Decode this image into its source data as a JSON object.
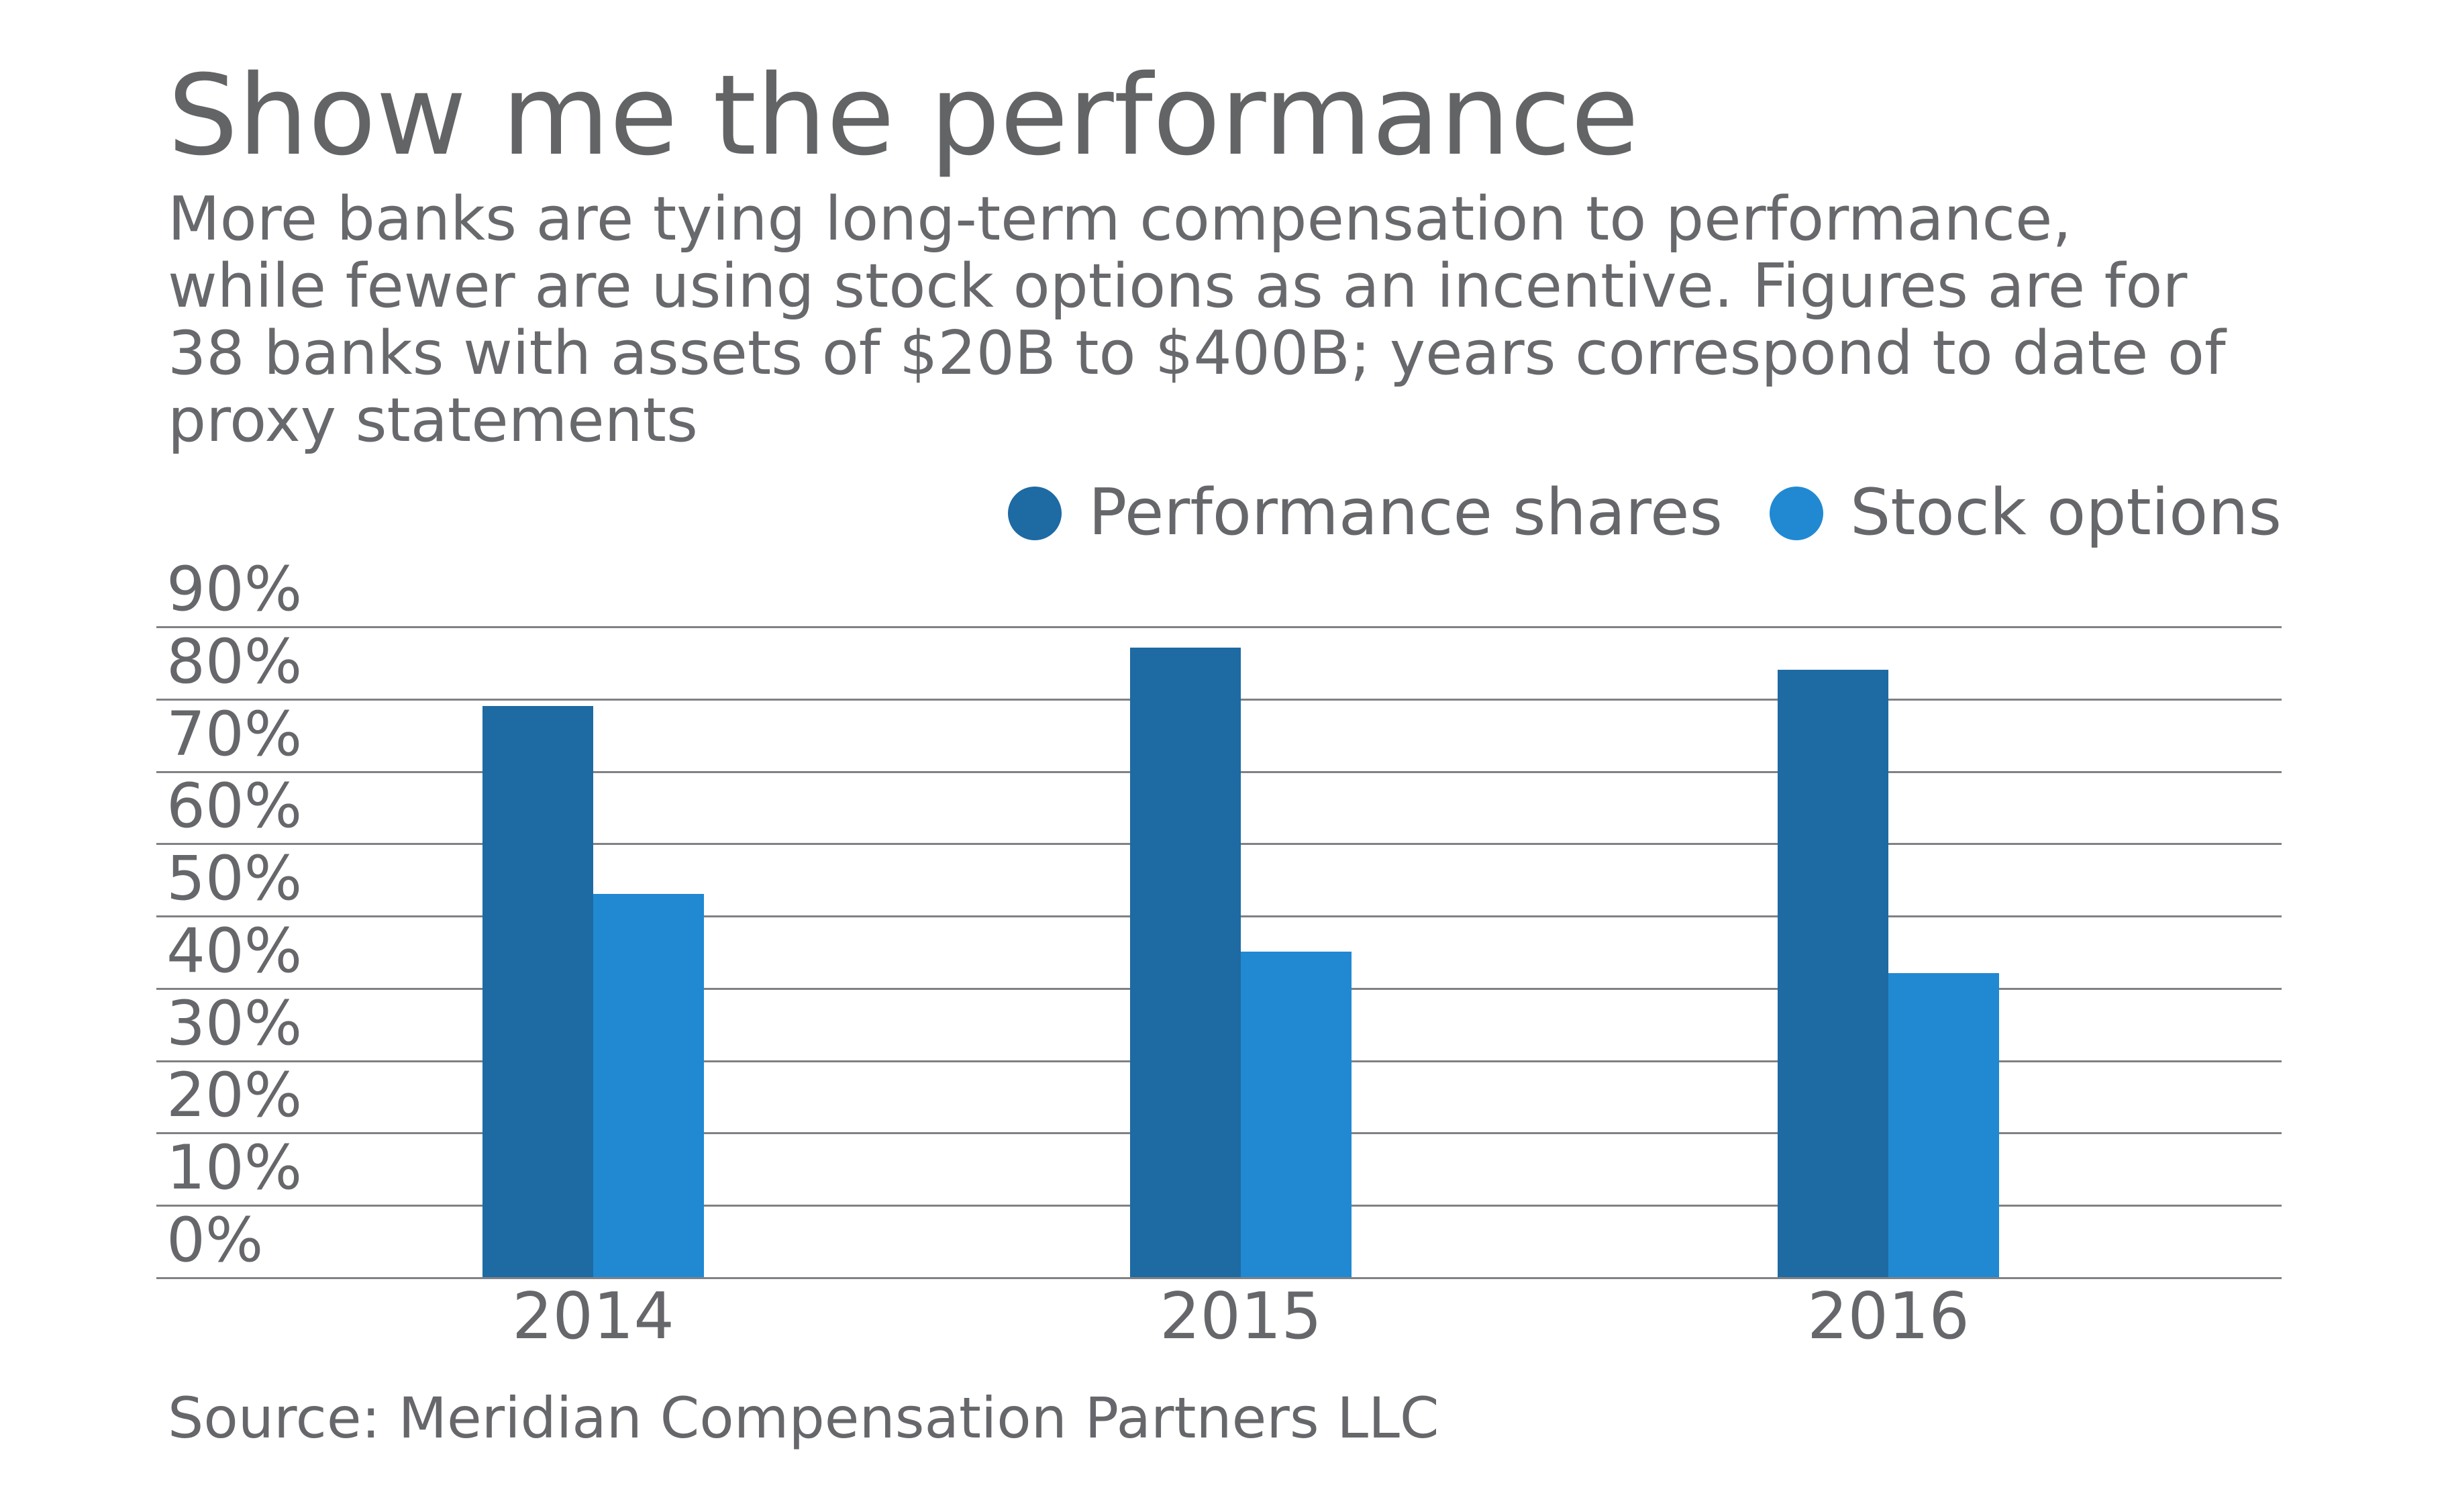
{
  "header": {
    "title": "Show me the performance",
    "subtitle_lines": [
      "More banks are tying long-term compensation to performance,",
      "while fewer are using stock options as an incentive. Figures are for",
      "38 banks with assets of $20B to $400B; years correspond to date of",
      "proxy statements"
    ]
  },
  "source": "Source: Meridian Compensation Partners LLC",
  "colors": {
    "performance_shares": "#1e6aa3",
    "stock_options": "#2189d2",
    "text_gray": "#66676a",
    "gridline_gray": "#7f8184",
    "background": "#ffffff"
  },
  "chart_data": {
    "type": "bar",
    "title": "Show me the performance",
    "categories": [
      "2014",
      "2015",
      "2016"
    ],
    "series": [
      {
        "name": "Performance shares",
        "color": "#1e6aa3",
        "values": [
          79,
          87,
          84
        ]
      },
      {
        "name": "Stock options",
        "color": "#2189d2",
        "values": [
          53,
          45,
          42
        ]
      }
    ],
    "xlabel": "",
    "ylabel": "",
    "y_ticks": [
      "90%",
      "80%",
      "70%",
      "60%",
      "50%",
      "40%",
      "30%",
      "20%",
      "10%",
      "0%"
    ],
    "ylim": [
      0,
      90
    ],
    "grid": "horizontal",
    "legend_position": "top-right",
    "units": "percent of banks"
  }
}
